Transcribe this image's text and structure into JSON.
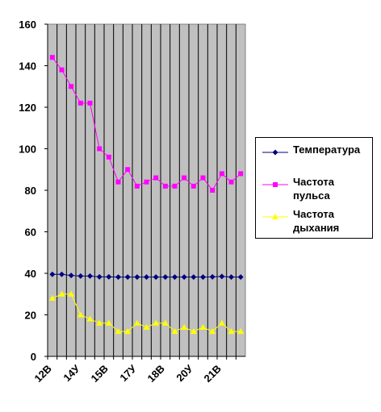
{
  "chart_data": {
    "type": "line",
    "categories": [
      "12В",
      null,
      null,
      "14У",
      null,
      null,
      "15В",
      null,
      null,
      "17У",
      null,
      null,
      "18В",
      null,
      null,
      "20У",
      null,
      null,
      "21В",
      null,
      null
    ],
    "series": [
      {
        "name": "Температура",
        "color": "#000080",
        "marker": "diamond",
        "values": [
          39.5,
          39.5,
          39,
          38.7,
          38.7,
          38.3,
          38.3,
          38.2,
          38.2,
          38.2,
          38.2,
          38.2,
          38.2,
          38.2,
          38.2,
          38.2,
          38.2,
          38.3,
          38.5,
          38.2,
          38.2
        ]
      },
      {
        "name": "Частота пульса",
        "color": "#ff00ff",
        "marker": "square",
        "values": [
          144,
          138,
          130,
          122,
          122,
          100,
          96,
          84,
          90,
          82,
          84,
          86,
          82,
          82,
          86,
          82,
          86,
          80,
          88,
          84,
          88
        ]
      },
      {
        "name": "Частота дыхания",
        "color": "#ffff00",
        "marker": "triangle",
        "values": [
          28,
          30,
          30,
          20,
          18,
          16,
          16,
          12,
          12,
          16,
          14,
          16,
          16,
          12,
          14,
          12,
          14,
          12,
          16,
          12,
          12
        ]
      }
    ],
    "ylim": [
      0,
      160
    ],
    "yticks": [
      0,
      20,
      40,
      60,
      80,
      100,
      120,
      140,
      160
    ],
    "grid": true,
    "plot_background": "#c0c0c0",
    "legend": "right"
  }
}
